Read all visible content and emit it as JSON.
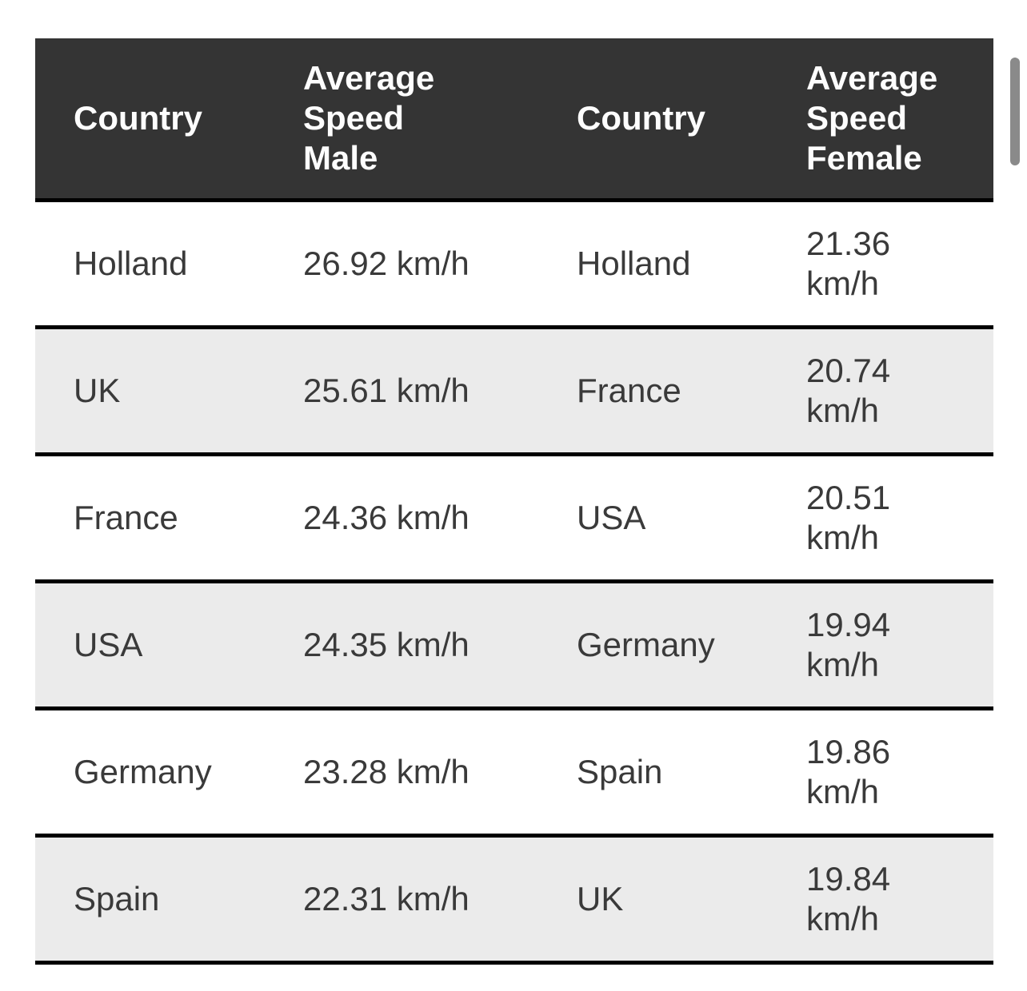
{
  "table": {
    "headers": [
      "Country",
      "Average Speed Male",
      "Country",
      "Average Speed Female"
    ],
    "rows": [
      [
        "Holland",
        "26.92 km/h",
        "Holland",
        "21.36 km/h"
      ],
      [
        "UK",
        "25.61 km/h",
        "France",
        "20.74 km/h"
      ],
      [
        "France",
        "24.36 km/h",
        "USA",
        "20.51 km/h"
      ],
      [
        "USA",
        "24.35 km/h",
        "Germany",
        "19.94 km/h"
      ],
      [
        "Germany",
        "23.28 km/h",
        "Spain",
        "19.86 km/h"
      ],
      [
        "Spain",
        "22.31 km/h",
        "UK",
        "19.84 km/h"
      ]
    ]
  },
  "colors": {
    "header_bg": "#343434",
    "header_text": "#fdfdfd",
    "body_text": "#3a3a3a",
    "row_alt_bg": "#ebebeb",
    "row_border": "#000000",
    "scrollbar_thumb": "#8a8a8a"
  },
  "chart_data": {
    "type": "table",
    "columns": [
      "Country",
      "Average Speed Male",
      "Country",
      "Average Speed Female"
    ],
    "rows": [
      [
        "Holland",
        "26.92 km/h",
        "Holland",
        "21.36 km/h"
      ],
      [
        "UK",
        "25.61 km/h",
        "France",
        "20.74 km/h"
      ],
      [
        "France",
        "24.36 km/h",
        "USA",
        "20.51 km/h"
      ],
      [
        "USA",
        "24.35 km/h",
        "Germany",
        "19.94 km/h"
      ],
      [
        "Germany",
        "23.28 km/h",
        "Spain",
        "19.86 km/h"
      ],
      [
        "Spain",
        "22.31 km/h",
        "UK",
        "19.84 km/h"
      ]
    ]
  }
}
